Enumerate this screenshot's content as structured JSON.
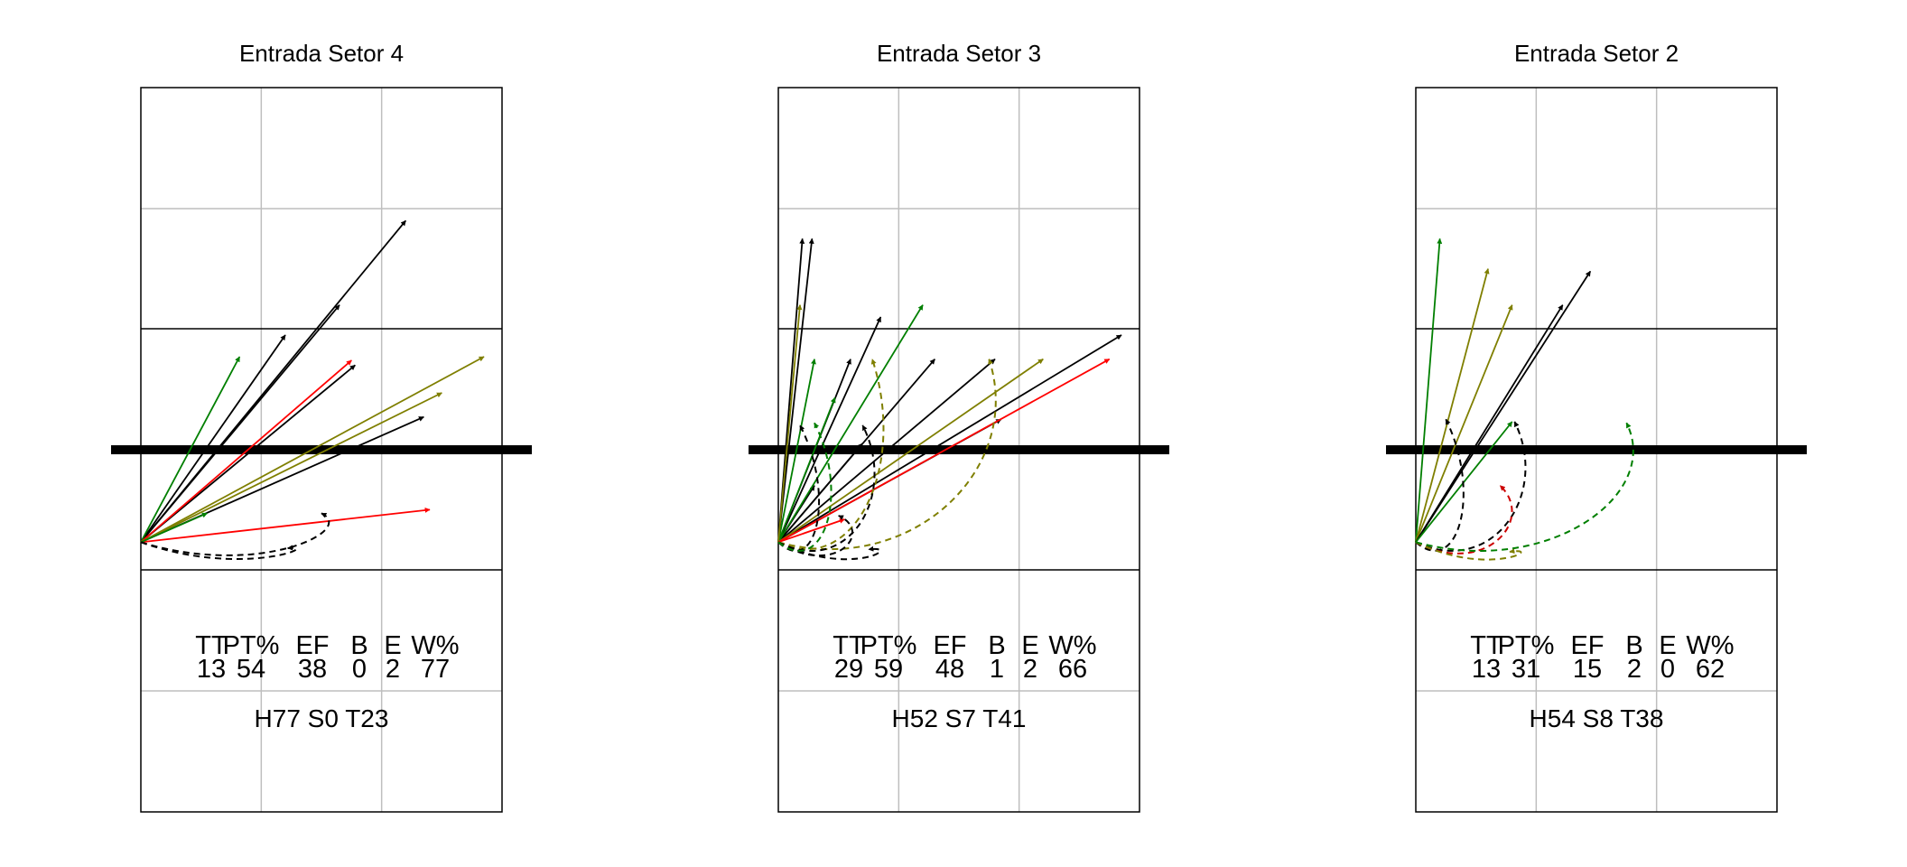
{
  "chart_data": [
    {
      "type": "other",
      "title": "Entrada Setor 4",
      "stats": {
        "headers": [
          "TT",
          "PT%",
          "EF",
          "B",
          "E",
          "W%"
        ],
        "values": [
          "13",
          "54",
          "38",
          "0",
          "2",
          "77"
        ]
      },
      "footer": "H77 S0 T23",
      "arrows": [
        {
          "from": [
            0.0,
            0.23
          ],
          "to": [
            2.2,
            2.9
          ],
          "color": "#000000",
          "style": "solid"
        },
        {
          "from": [
            0.0,
            0.23
          ],
          "to": [
            1.2,
            1.95
          ],
          "color": "#000000",
          "style": "solid"
        },
        {
          "from": [
            0.0,
            0.23
          ],
          "to": [
            1.65,
            2.2
          ],
          "color": "#000000",
          "style": "solid"
        },
        {
          "from": [
            0.0,
            0.23
          ],
          "to": [
            1.78,
            1.7
          ],
          "color": "#000000",
          "style": "solid"
        },
        {
          "from": [
            0.0,
            0.23
          ],
          "to": [
            2.35,
            1.27
          ],
          "color": "#000000",
          "style": "solid"
        },
        {
          "from": [
            0.0,
            0.23
          ],
          "to": [
            0.82,
            1.77
          ],
          "color": "#007F00",
          "style": "solid"
        },
        {
          "from": [
            0.0,
            0.23
          ],
          "to": [
            1.75,
            1.74
          ],
          "color": "#FF0000",
          "style": "solid"
        },
        {
          "from": [
            0.0,
            0.23
          ],
          "to": [
            2.4,
            0.5
          ],
          "color": "#FF0000",
          "style": "solid"
        },
        {
          "from": [
            0.0,
            0.23
          ],
          "to": [
            2.85,
            1.77
          ],
          "color": "#7F7F00",
          "style": "solid"
        },
        {
          "from": [
            0.0,
            0.23
          ],
          "to": [
            2.5,
            1.47
          ],
          "color": "#7F7F00",
          "style": "solid"
        },
        {
          "from": [
            0.0,
            0.23
          ],
          "to": [
            0.55,
            0.47
          ],
          "color": "#007F00",
          "style": "solid"
        },
        {
          "from": [
            0.0,
            0.23
          ],
          "to": [
            1.22,
            0.18
          ],
          "color": "#000000",
          "style": "dashed"
        },
        {
          "from": [
            0.0,
            0.23
          ],
          "to": [
            1.5,
            0.47
          ],
          "color": "#000000",
          "style": "dashed"
        }
      ]
    },
    {
      "type": "other",
      "title": "Entrada Setor 3",
      "stats": {
        "headers": [
          "TT",
          "PT%",
          "EF",
          "B",
          "E",
          "W%"
        ],
        "values": [
          "29",
          "59",
          "48",
          "1",
          "2",
          "66"
        ]
      },
      "footer": "H52 S7 T41",
      "arrows": [
        {
          "from": [
            0.0,
            0.23
          ],
          "to": [
            0.2,
            2.75
          ],
          "color": "#000000",
          "style": "solid"
        },
        {
          "from": [
            0.0,
            0.23
          ],
          "to": [
            0.28,
            2.75
          ],
          "color": "#000000",
          "style": "solid"
        },
        {
          "from": [
            0.0,
            0.23
          ],
          "to": [
            0.85,
            2.1
          ],
          "color": "#000000",
          "style": "solid"
        },
        {
          "from": [
            0.0,
            0.23
          ],
          "to": [
            0.6,
            1.75
          ],
          "color": "#000000",
          "style": "solid"
        },
        {
          "from": [
            0.0,
            0.23
          ],
          "to": [
            1.3,
            1.75
          ],
          "color": "#000000",
          "style": "solid"
        },
        {
          "from": [
            0.0,
            0.23
          ],
          "to": [
            1.8,
            1.75
          ],
          "color": "#000000",
          "style": "solid"
        },
        {
          "from": [
            0.0,
            0.23
          ],
          "to": [
            1.85,
            1.25
          ],
          "color": "#000000",
          "style": "solid"
        },
        {
          "from": [
            0.0,
            0.23
          ],
          "to": [
            2.85,
            1.95
          ],
          "color": "#000000",
          "style": "solid"
        },
        {
          "from": [
            0.0,
            0.23
          ],
          "to": [
            0.7,
            1.05
          ],
          "color": "#000000",
          "style": "solid"
        },
        {
          "from": [
            0.0,
            0.23
          ],
          "to": [
            0.3,
            0.7
          ],
          "color": "#000000",
          "style": "solid"
        },
        {
          "from": [
            0.0,
            0.23
          ],
          "to": [
            1.2,
            2.2
          ],
          "color": "#007F00",
          "style": "solid"
        },
        {
          "from": [
            0.0,
            0.23
          ],
          "to": [
            0.3,
            1.75
          ],
          "color": "#007F00",
          "style": "solid"
        },
        {
          "from": [
            0.0,
            0.23
          ],
          "to": [
            0.47,
            1.43
          ],
          "color": "#007F00",
          "style": "solid"
        },
        {
          "from": [
            0.0,
            0.23
          ],
          "to": [
            0.18,
            2.2
          ],
          "color": "#7F7F00",
          "style": "solid"
        },
        {
          "from": [
            0.0,
            0.23
          ],
          "to": [
            2.2,
            1.75
          ],
          "color": "#7F7F00",
          "style": "solid"
        },
        {
          "from": [
            0.0,
            0.23
          ],
          "to": [
            2.75,
            1.75
          ],
          "color": "#FF0000",
          "style": "solid"
        },
        {
          "from": [
            0.0,
            0.23
          ],
          "to": [
            0.55,
            0.42
          ],
          "color": "#FF0000",
          "style": "solid"
        },
        {
          "from": [
            0.0,
            0.23
          ],
          "to": [
            0.78,
            1.75
          ],
          "color": "#7F7F00",
          "style": "dashed"
        },
        {
          "from": [
            0.0,
            0.23
          ],
          "to": [
            1.75,
            1.75
          ],
          "color": "#7F7F00",
          "style": "dashed"
        },
        {
          "from": [
            0.0,
            0.23
          ],
          "to": [
            0.18,
            1.2
          ],
          "color": "#000000",
          "style": "dashed"
        },
        {
          "from": [
            0.0,
            0.23
          ],
          "to": [
            0.7,
            1.2
          ],
          "color": "#000000",
          "style": "dashed"
        },
        {
          "from": [
            0.0,
            0.23
          ],
          "to": [
            0.5,
            0.45
          ],
          "color": "#000000",
          "style": "dashed"
        },
        {
          "from": [
            0.0,
            0.23
          ],
          "to": [
            0.75,
            0.17
          ],
          "color": "#000000",
          "style": "dashed"
        },
        {
          "from": [
            0.0,
            0.23
          ],
          "to": [
            0.3,
            1.22
          ],
          "color": "#007F00",
          "style": "dashed"
        }
      ]
    },
    {
      "type": "other",
      "title": "Entrada Setor 2",
      "stats": {
        "headers": [
          "TT",
          "PT%",
          "EF",
          "B",
          "E",
          "W%"
        ],
        "values": [
          "13",
          "31",
          "15",
          "2",
          "0",
          "62"
        ]
      },
      "footer": "H54 S8 T38",
      "arrows": [
        {
          "from": [
            0.0,
            0.23
          ],
          "to": [
            0.2,
            2.75
          ],
          "color": "#007F00",
          "style": "solid"
        },
        {
          "from": [
            0.0,
            0.23
          ],
          "to": [
            0.6,
            2.5
          ],
          "color": "#7F7F00",
          "style": "solid"
        },
        {
          "from": [
            0.0,
            0.23
          ],
          "to": [
            0.8,
            2.2
          ],
          "color": "#7F7F00",
          "style": "solid"
        },
        {
          "from": [
            0.0,
            0.23
          ],
          "to": [
            1.45,
            2.48
          ],
          "color": "#000000",
          "style": "solid"
        },
        {
          "from": [
            0.0,
            0.23
          ],
          "to": [
            1.22,
            2.2
          ],
          "color": "#000000",
          "style": "solid"
        },
        {
          "from": [
            0.0,
            0.23
          ],
          "to": [
            0.8,
            1.23
          ],
          "color": "#007F00",
          "style": "solid"
        },
        {
          "from": [
            0.0,
            0.23
          ],
          "to": [
            0.25,
            1.25
          ],
          "color": "#000000",
          "style": "dashed"
        },
        {
          "from": [
            0.0,
            0.23
          ],
          "to": [
            0.82,
            1.23
          ],
          "color": "#000000",
          "style": "dashed"
        },
        {
          "from": [
            0.0,
            0.23
          ],
          "to": [
            0.7,
            0.7
          ],
          "color": "#CC0000",
          "style": "dashed"
        },
        {
          "from": [
            0.0,
            0.23
          ],
          "to": [
            0.78,
            0.15
          ],
          "color": "#7F7F00",
          "style": "dashed"
        },
        {
          "from": [
            0.0,
            0.23
          ],
          "to": [
            1.75,
            1.22
          ],
          "color": "#007F00",
          "style": "dashed"
        }
      ]
    }
  ]
}
